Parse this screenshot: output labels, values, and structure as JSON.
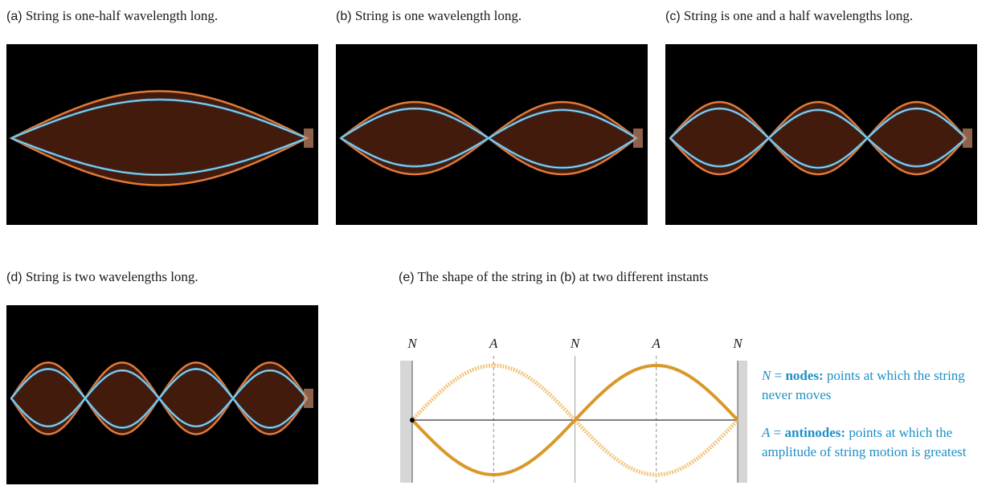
{
  "panels": [
    {
      "letter": "(a)",
      "text": "String is one-half wavelength long.",
      "loops": 1
    },
    {
      "letter": "(b)",
      "text": "String is one wavelength long.",
      "loops": 2
    },
    {
      "letter": "(c)",
      "text": "String is one and a half wavelengths long.",
      "loops": 3
    },
    {
      "letter": "(d)",
      "text": "String is two wavelengths long.",
      "loops": 4
    }
  ],
  "diagram": {
    "caption_letter": "(e)",
    "caption_pre": "The shape of the string in",
    "caption_ref": "(b)",
    "caption_post": "at two different instants",
    "labels": [
      "N",
      "A",
      "N",
      "A",
      "N"
    ]
  },
  "legend": {
    "n_symbol": "N",
    "n_equals": " = ",
    "n_term": "nodes:",
    "n_desc": " points at which the string never moves",
    "a_symbol": "A",
    "a_equals": " = ",
    "a_term": "antinodes:",
    "a_desc": " points at which the amplitude of string motion is greatest"
  },
  "colors": {
    "string_orange": "#e07a3a",
    "string_blue": "#2a9fd8",
    "diagram_solid": "#d9982a",
    "diagram_light": "#f2c67e",
    "legend_text": "#1e8fc6"
  }
}
